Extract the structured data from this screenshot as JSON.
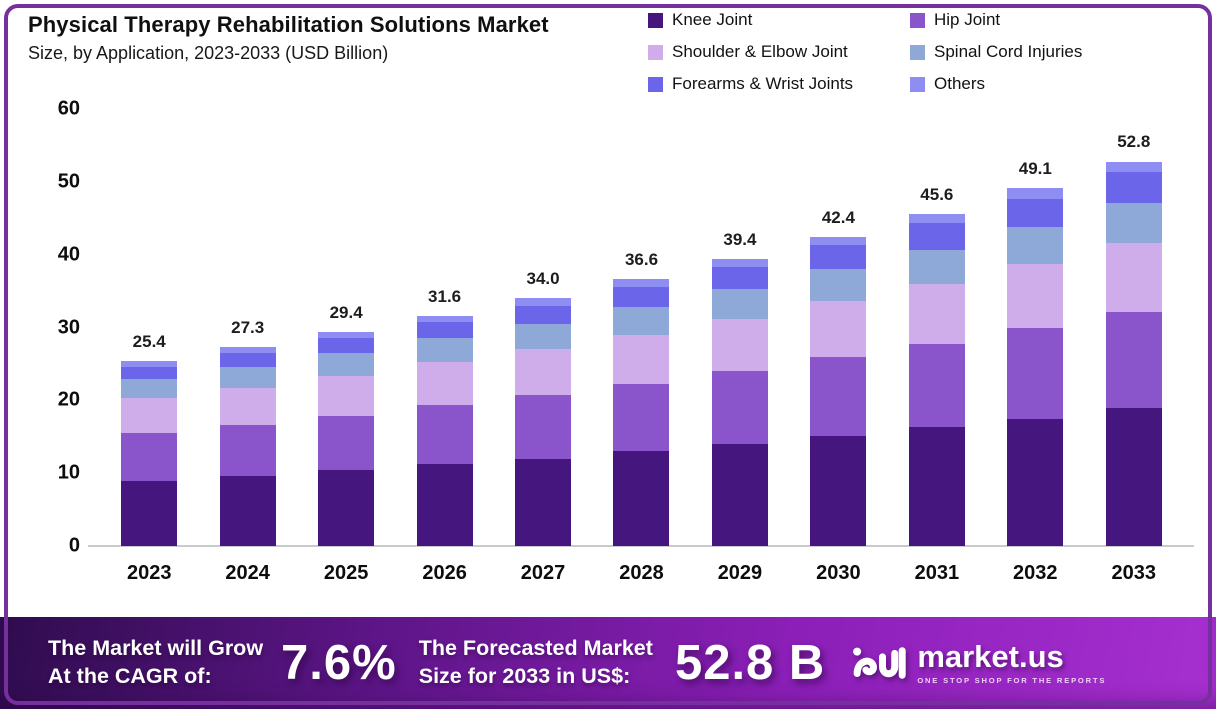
{
  "title": {
    "line1": "Physical Therapy Rehabilitation Solutions Market",
    "line2": "Size, by Application, 2023-2033 (USD Billion)"
  },
  "legend": [
    {
      "label": "Knee Joint",
      "color": "#45177e"
    },
    {
      "label": "Hip Joint",
      "color": "#8a54cb"
    },
    {
      "label": "Shoulder & Elbow Joint",
      "color": "#cfadea"
    },
    {
      "label": "Spinal Cord Injuries",
      "color": "#8ea9d8"
    },
    {
      "label": "Forearms & Wrist Joints",
      "color": "#6b66e9"
    },
    {
      "label": "Others",
      "color": "#8e8df2"
    }
  ],
  "chart_data": {
    "type": "bar",
    "stacked": true,
    "title": "Physical Therapy Rehabilitation Solutions Market Size, by Application, 2023-2033 (USD Billion)",
    "categories": [
      "2023",
      "2024",
      "2025",
      "2026",
      "2027",
      "2028",
      "2029",
      "2030",
      "2031",
      "2032",
      "2033"
    ],
    "series": [
      {
        "name": "Knee Joint",
        "color": "#45177e",
        "values": [
          8.9,
          9.6,
          10.4,
          11.2,
          12.0,
          13.0,
          14.0,
          15.1,
          16.3,
          17.5,
          18.9
        ]
      },
      {
        "name": "Hip Joint",
        "color": "#8a54cb",
        "values": [
          6.6,
          7.0,
          7.5,
          8.1,
          8.7,
          9.3,
          10.0,
          10.8,
          11.5,
          12.4,
          13.3
        ]
      },
      {
        "name": "Shoulder & Elbow Joint",
        "color": "#cfadea",
        "values": [
          4.8,
          5.1,
          5.5,
          5.9,
          6.3,
          6.7,
          7.2,
          7.7,
          8.2,
          8.8,
          9.4
        ]
      },
      {
        "name": "Spinal Cord Injuries",
        "color": "#8ea9d8",
        "values": [
          2.6,
          2.9,
          3.1,
          3.3,
          3.5,
          3.8,
          4.1,
          4.4,
          4.7,
          5.1,
          5.5
        ]
      },
      {
        "name": "Forearms & Wrist Joints",
        "color": "#6b66e9",
        "values": [
          1.7,
          1.9,
          2.1,
          2.2,
          2.5,
          2.8,
          3.0,
          3.3,
          3.6,
          3.9,
          4.3
        ]
      },
      {
        "name": "Others",
        "color": "#8e8df2",
        "values": [
          0.8,
          0.8,
          0.8,
          0.9,
          1.0,
          1.0,
          1.1,
          1.1,
          1.3,
          1.4,
          1.4
        ]
      }
    ],
    "totals": [
      25.4,
      27.3,
      29.4,
      31.6,
      34.0,
      36.6,
      39.4,
      42.4,
      45.6,
      49.1,
      52.8
    ],
    "xlabel": "",
    "ylabel": "",
    "ylim": [
      0,
      60
    ],
    "yticks": [
      0,
      10,
      20,
      30,
      40,
      50,
      60
    ],
    "grid": false,
    "legend_position": "top-right"
  },
  "banner": {
    "cagr_label_line1": "The Market will Grow",
    "cagr_label_line2": "At the CAGR of:",
    "cagr_value": "7.6%",
    "forecast_label_line1": "The Forecasted Market",
    "forecast_label_line2": "Size for 2033 in US$:",
    "forecast_value": "52.8 B",
    "brand_name": "market.us",
    "brand_tagline": "ONE STOP SHOP FOR THE REPORTS"
  },
  "colors": {
    "page_border": "#76309e",
    "axis_line": "#c9c9d0",
    "banner_gradient_start": "#2f0c4e",
    "banner_gradient_mid": "#8c1fb8",
    "banner_gradient_end": "#a62fd0"
  }
}
